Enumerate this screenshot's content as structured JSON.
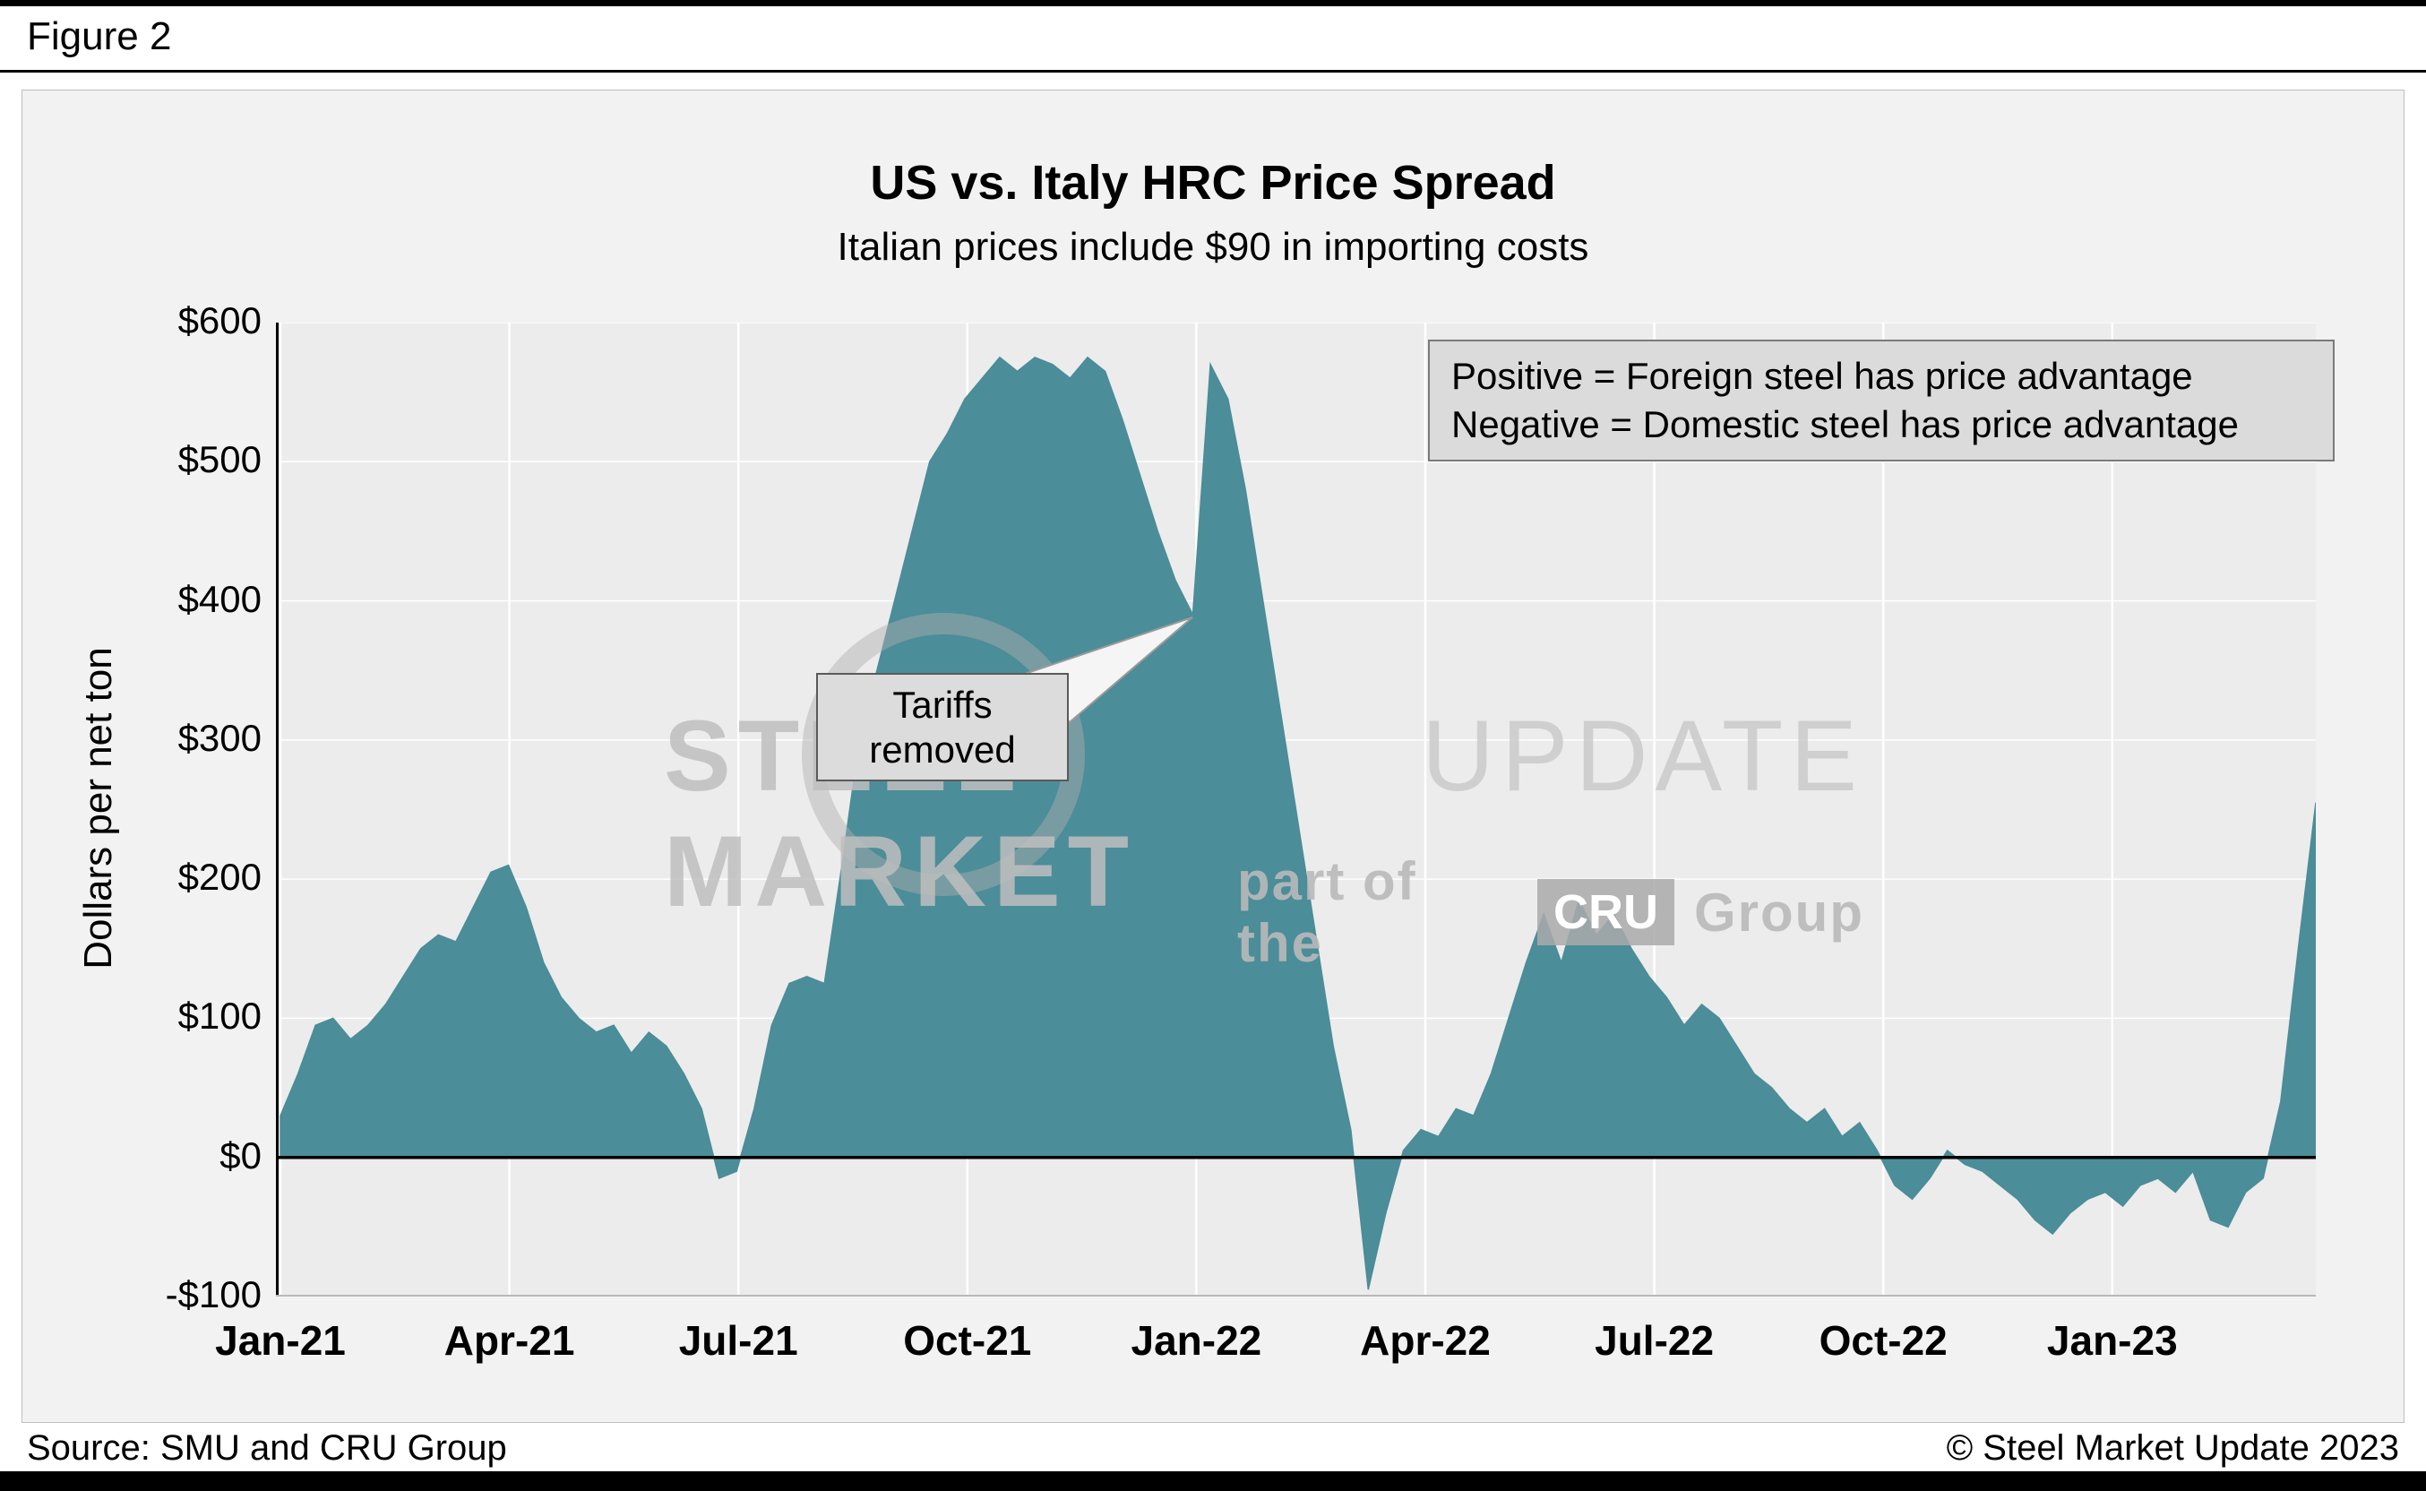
{
  "figure_label": "Figure 2",
  "chart_data": {
    "type": "area",
    "title": "US vs. Italy HRC Price Spread",
    "subtitle": "Italian prices include $90 in importing costs",
    "ylabel": "Dollars per net ton",
    "ylim": [
      -100,
      600
    ],
    "ytick_step": 100,
    "ytick_values": [
      600,
      500,
      400,
      300,
      200,
      100,
      0,
      -100
    ],
    "ytick_labels": [
      "$600",
      "$500",
      "$400",
      "$300",
      "$200",
      "$100",
      "$0",
      "-$100"
    ],
    "xtick_labels": [
      "Jan-21",
      "Apr-21",
      "Jul-21",
      "Oct-21",
      "Jan-22",
      "Apr-22",
      "Jul-22",
      "Oct-22",
      "Jan-23"
    ],
    "xtick_weeks": [
      0,
      13.05,
      26.1,
      39.15,
      52.2,
      65.25,
      78.3,
      91.35,
      104.4
    ],
    "x_weeks_total": 116,
    "x_frequency": "weekly from Jan-21 through late Mar-23",
    "area_color": "#4b8d98",
    "plot_bg": "#ececec",
    "grid": "on",
    "zero_line": true,
    "values_weekly": [
      30,
      60,
      95,
      100,
      85,
      95,
      110,
      130,
      150,
      160,
      155,
      180,
      205,
      210,
      180,
      140,
      115,
      100,
      90,
      95,
      75,
      90,
      80,
      60,
      35,
      -15,
      -10,
      35,
      95,
      125,
      130,
      125,
      210,
      300,
      350,
      400,
      450,
      500,
      520,
      545,
      560,
      575,
      565,
      575,
      570,
      560,
      575,
      565,
      530,
      490,
      450,
      415,
      390,
      570,
      545,
      480,
      400,
      320,
      240,
      160,
      80,
      20,
      -95,
      -40,
      5,
      20,
      15,
      35,
      30,
      60,
      100,
      140,
      175,
      140,
      185,
      160,
      175,
      150,
      130,
      115,
      95,
      110,
      100,
      80,
      60,
      50,
      35,
      25,
      35,
      15,
      25,
      5,
      -20,
      -30,
      -15,
      5,
      -5,
      -10,
      -20,
      -30,
      -45,
      -55,
      -40,
      -30,
      -25,
      -35,
      -20,
      -15,
      -25,
      -10,
      -45,
      -50,
      -25,
      -15,
      40,
      150,
      255
    ],
    "legend_position": "top-right",
    "annotations": {
      "note_line1": "Positive = Foreign steel has price advantage",
      "note_line2": "Negative = Domestic steel has price advantage",
      "callout_line1": "Tariffs",
      "callout_line2": "removed",
      "callout_points_to": {
        "approx_date": "Dec-21",
        "value": 390
      }
    }
  },
  "watermark": {
    "text_bold": "STEEL MARKET",
    "text_light": "UPDATE",
    "tagline_prefix": "part of the",
    "tagline_logo": "CRU",
    "tagline_suffix": "Group"
  },
  "footer": {
    "source": "Source: SMU and CRU Group",
    "copyright": "© Steel Market Update 2023"
  }
}
